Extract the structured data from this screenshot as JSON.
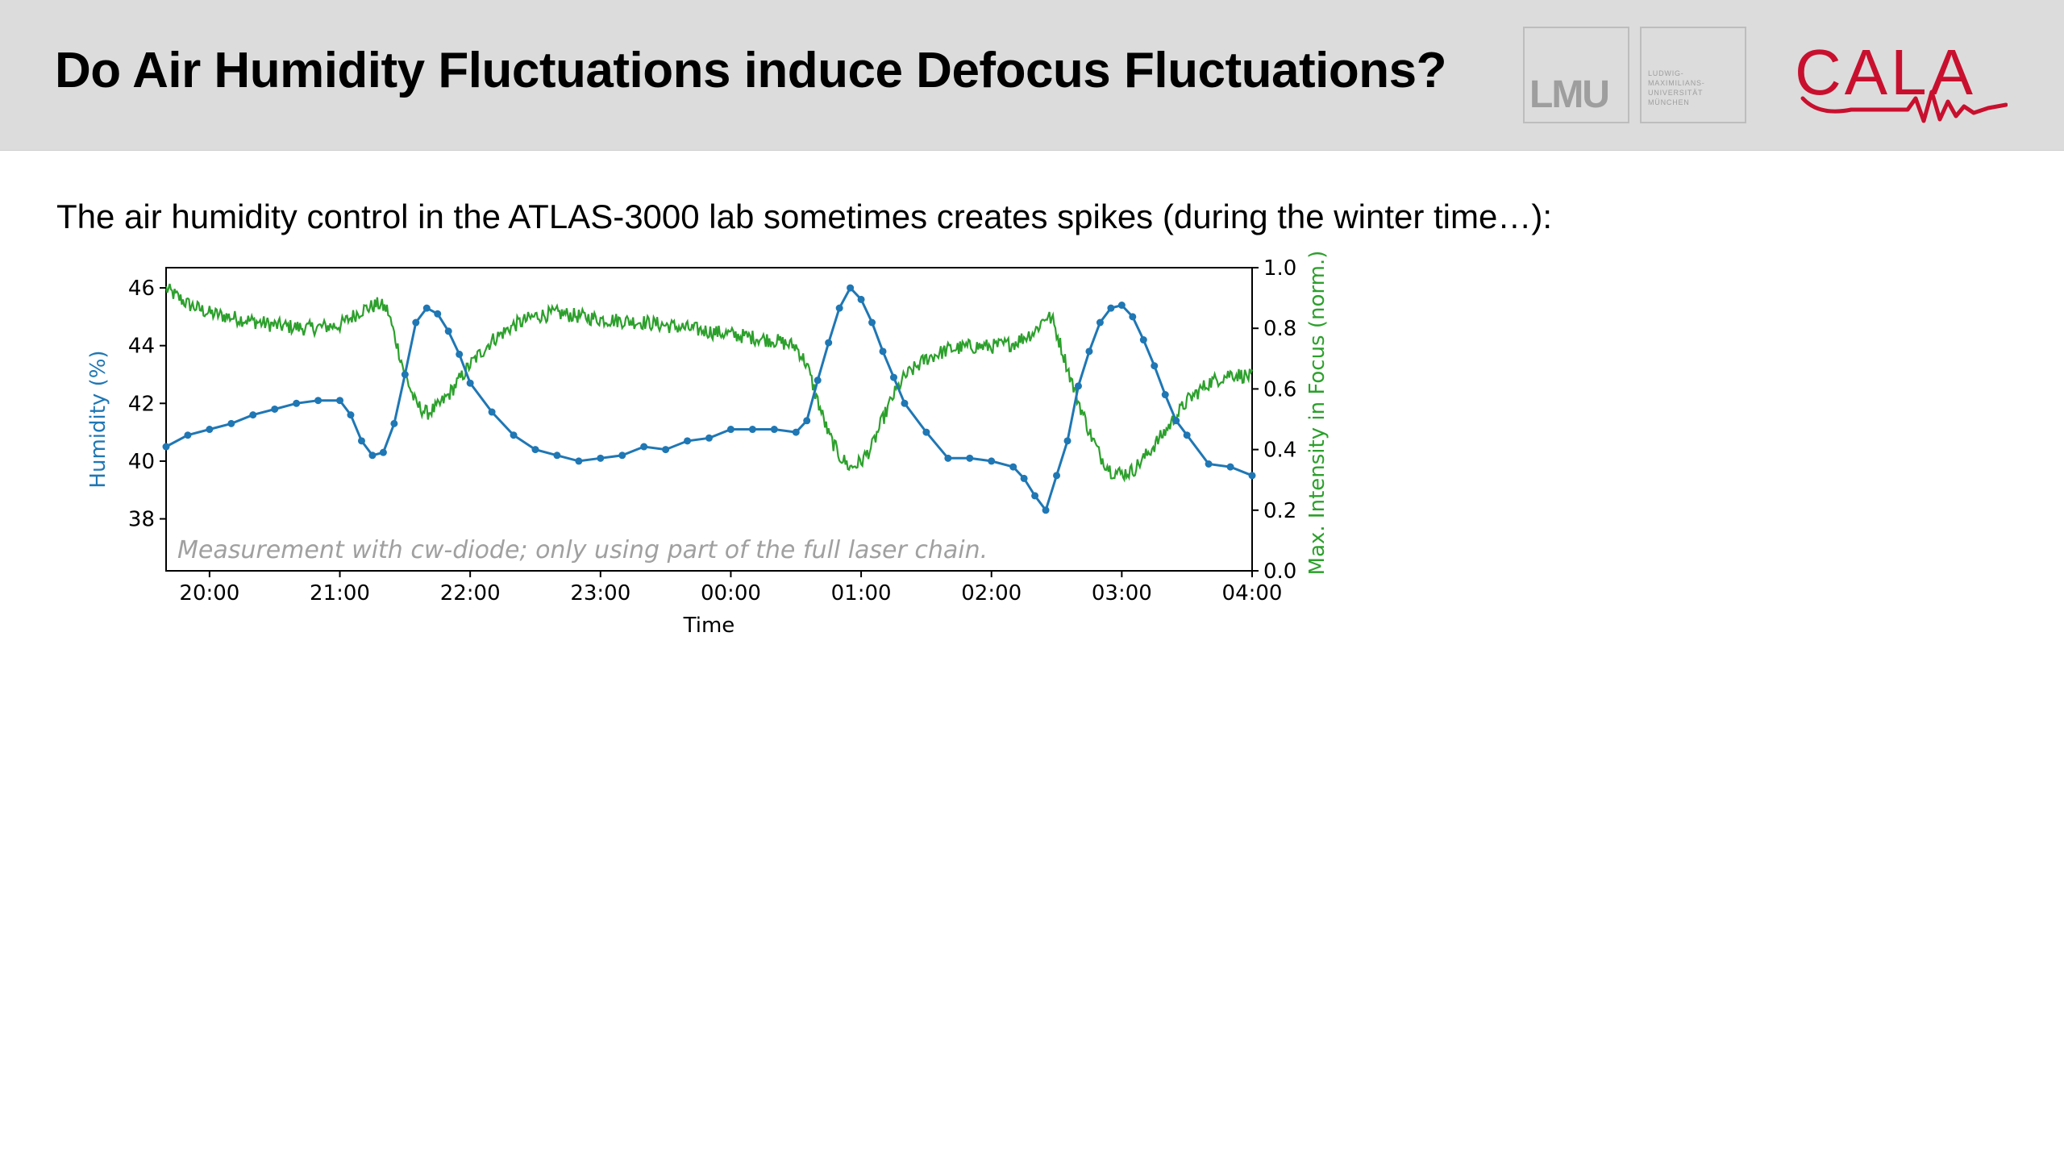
{
  "header": {
    "title": "Do Air Humidity Fluctuations induce Defocus Fluctuations?",
    "logo_lmu": "LMU",
    "logo_lmu_univ": "LUDWIG-\nMAXIMILIANS-\nUNIVERSITÄT\nMÜNCHEN",
    "logo_cala": "CALA"
  },
  "intro": "The air humidity control in the ATLAS-3000 lab sometimes creates spikes (during the winter time…):",
  "chart_data": {
    "type": "line",
    "annotation": "Measurement with cw-diode; only using part of the full laser chain.",
    "xlabel": "Time",
    "x_ticks": [
      "20:00",
      "21:00",
      "22:00",
      "23:00",
      "00:00",
      "01:00",
      "02:00",
      "03:00",
      "04:00"
    ],
    "x_range": [
      "19:40",
      "04:00"
    ],
    "y_left": {
      "label": "Humidity (%)",
      "range": [
        36.2,
        46.7
      ],
      "ticks": [
        38,
        40,
        42,
        44,
        46
      ],
      "color": "#1f77b4"
    },
    "y_right": {
      "label": "Max. Intensity in Focus (norm.)",
      "range": [
        0.0,
        1.0
      ],
      "ticks": [
        "0.0",
        "0.2",
        "0.4",
        "0.6",
        "0.8",
        "1.0"
      ],
      "color": "#2ca02c"
    },
    "grid": false,
    "series": [
      {
        "axis": "left",
        "marker": "circle",
        "color": "#1f77b4",
        "points": [
          [
            "19:40",
            40.5
          ],
          [
            "19:50",
            40.9
          ],
          [
            "20:00",
            41.1
          ],
          [
            "20:10",
            41.3
          ],
          [
            "20:20",
            41.6
          ],
          [
            "20:30",
            41.8
          ],
          [
            "20:40",
            42.0
          ],
          [
            "20:50",
            42.1
          ],
          [
            "21:00",
            42.1
          ],
          [
            "21:05",
            41.6
          ],
          [
            "21:10",
            40.7
          ],
          [
            "21:15",
            40.2
          ],
          [
            "21:20",
            40.3
          ],
          [
            "21:25",
            41.3
          ],
          [
            "21:30",
            43.0
          ],
          [
            "21:35",
            44.8
          ],
          [
            "21:40",
            45.3
          ],
          [
            "21:45",
            45.1
          ],
          [
            "21:50",
            44.5
          ],
          [
            "21:55",
            43.7
          ],
          [
            "22:00",
            42.7
          ],
          [
            "22:10",
            41.7
          ],
          [
            "22:20",
            40.9
          ],
          [
            "22:30",
            40.4
          ],
          [
            "22:40",
            40.2
          ],
          [
            "22:50",
            40.0
          ],
          [
            "23:00",
            40.1
          ],
          [
            "23:10",
            40.2
          ],
          [
            "23:20",
            40.5
          ],
          [
            "23:30",
            40.4
          ],
          [
            "23:40",
            40.7
          ],
          [
            "23:50",
            40.8
          ],
          [
            "00:00",
            41.1
          ],
          [
            "00:10",
            41.1
          ],
          [
            "00:20",
            41.1
          ],
          [
            "00:30",
            41.0
          ],
          [
            "00:35",
            41.4
          ],
          [
            "00:40",
            42.8
          ],
          [
            "00:45",
            44.1
          ],
          [
            "00:50",
            45.3
          ],
          [
            "00:55",
            46.0
          ],
          [
            "01:00",
            45.6
          ],
          [
            "01:05",
            44.8
          ],
          [
            "01:10",
            43.8
          ],
          [
            "01:15",
            42.9
          ],
          [
            "01:20",
            42.0
          ],
          [
            "01:30",
            41.0
          ],
          [
            "01:40",
            40.1
          ],
          [
            "01:50",
            40.1
          ],
          [
            "02:00",
            40.0
          ],
          [
            "02:10",
            39.8
          ],
          [
            "02:15",
            39.4
          ],
          [
            "02:20",
            38.8
          ],
          [
            "02:25",
            38.3
          ],
          [
            "02:30",
            39.5
          ],
          [
            "02:35",
            40.7
          ],
          [
            "02:40",
            42.6
          ],
          [
            "02:45",
            43.8
          ],
          [
            "02:50",
            44.8
          ],
          [
            "02:55",
            45.3
          ],
          [
            "03:00",
            45.4
          ],
          [
            "03:05",
            45.0
          ],
          [
            "03:10",
            44.2
          ],
          [
            "03:15",
            43.3
          ],
          [
            "03:20",
            42.3
          ],
          [
            "03:25",
            41.4
          ],
          [
            "03:30",
            40.9
          ],
          [
            "03:40",
            39.9
          ],
          [
            "03:50",
            39.8
          ],
          [
            "04:00",
            39.5
          ]
        ]
      },
      {
        "axis": "right",
        "marker": "none",
        "color": "#2ca02c",
        "points": [
          [
            "19:40",
            0.93
          ],
          [
            "19:50",
            0.88
          ],
          [
            "20:00",
            0.85
          ],
          [
            "20:15",
            0.83
          ],
          [
            "20:30",
            0.81
          ],
          [
            "20:45",
            0.8
          ],
          [
            "21:00",
            0.81
          ],
          [
            "21:10",
            0.86
          ],
          [
            "21:18",
            0.88
          ],
          [
            "21:22",
            0.86
          ],
          [
            "21:25",
            0.78
          ],
          [
            "21:30",
            0.65
          ],
          [
            "21:35",
            0.55
          ],
          [
            "21:40",
            0.52
          ],
          [
            "21:45",
            0.54
          ],
          [
            "21:50",
            0.58
          ],
          [
            "22:00",
            0.68
          ],
          [
            "22:10",
            0.76
          ],
          [
            "22:20",
            0.81
          ],
          [
            "22:30",
            0.84
          ],
          [
            "22:40",
            0.85
          ],
          [
            "23:00",
            0.83
          ],
          [
            "23:20",
            0.82
          ],
          [
            "23:40",
            0.8
          ],
          [
            "00:00",
            0.78
          ],
          [
            "00:20",
            0.76
          ],
          [
            "00:30",
            0.74
          ],
          [
            "00:35",
            0.68
          ],
          [
            "00:40",
            0.56
          ],
          [
            "00:45",
            0.45
          ],
          [
            "00:50",
            0.38
          ],
          [
            "00:55",
            0.34
          ],
          [
            "01:00",
            0.36
          ],
          [
            "01:05",
            0.41
          ],
          [
            "01:10",
            0.5
          ],
          [
            "01:15",
            0.58
          ],
          [
            "01:20",
            0.64
          ],
          [
            "01:30",
            0.7
          ],
          [
            "01:40",
            0.73
          ],
          [
            "01:50",
            0.74
          ],
          [
            "02:00",
            0.74
          ],
          [
            "02:10",
            0.75
          ],
          [
            "02:20",
            0.79
          ],
          [
            "02:25",
            0.84
          ],
          [
            "02:28",
            0.83
          ],
          [
            "02:32",
            0.74
          ],
          [
            "02:38",
            0.6
          ],
          [
            "02:45",
            0.46
          ],
          [
            "02:50",
            0.38
          ],
          [
            "02:55",
            0.33
          ],
          [
            "03:00",
            0.32
          ],
          [
            "03:05",
            0.33
          ],
          [
            "03:10",
            0.37
          ],
          [
            "03:20",
            0.46
          ],
          [
            "03:30",
            0.56
          ],
          [
            "03:40",
            0.62
          ],
          [
            "03:50",
            0.65
          ],
          [
            "04:00",
            0.64
          ]
        ]
      }
    ]
  }
}
